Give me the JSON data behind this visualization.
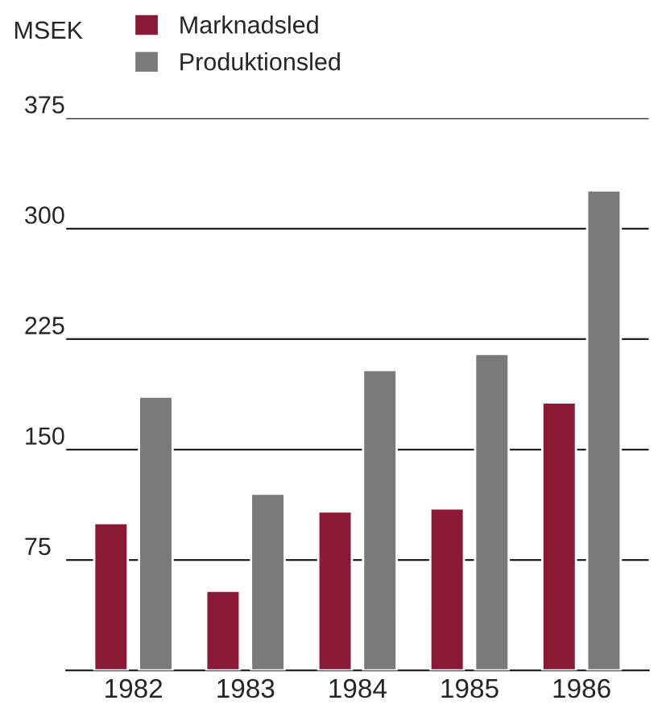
{
  "chart_data": {
    "type": "bar",
    "ylabel": "MSEK",
    "categories": [
      "1982",
      "1983",
      "1984",
      "1985",
      "1986"
    ],
    "series": [
      {
        "name": "Marknadsled",
        "color": "#8b1a36",
        "values": [
          100,
          54,
          108,
          110,
          182
        ]
      },
      {
        "name": "Produktionsled",
        "color": "#7a7a7a",
        "values": [
          186,
          120,
          204,
          215,
          326
        ]
      }
    ],
    "ylim": [
      0,
      375
    ],
    "yticks": [
      75,
      150,
      225,
      300,
      375
    ],
    "grid": "y",
    "legend": "top"
  }
}
